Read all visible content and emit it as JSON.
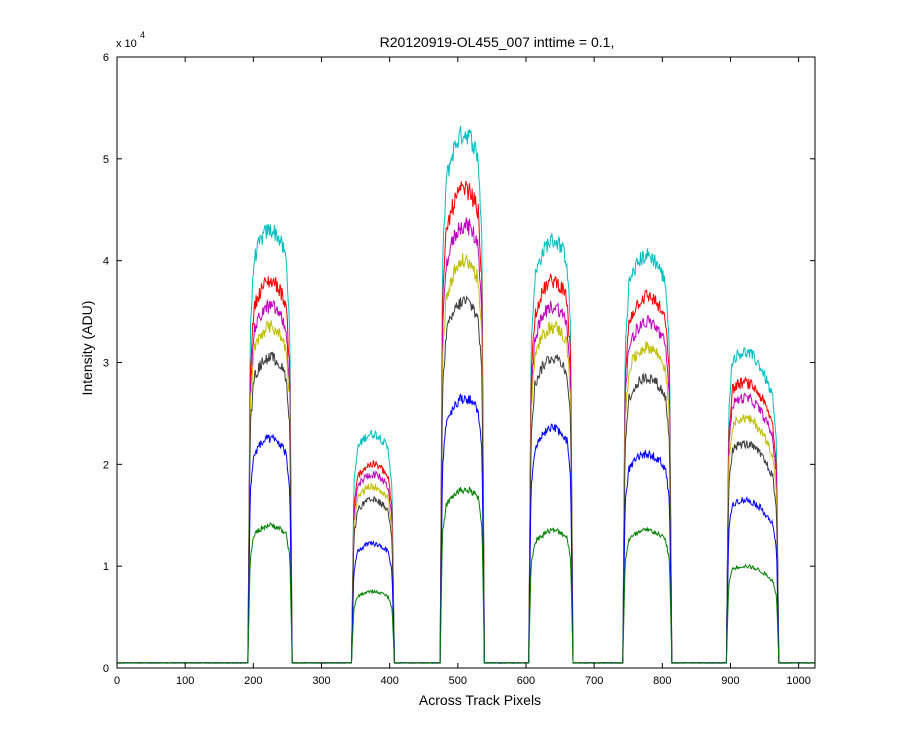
{
  "chart_data": {
    "type": "line",
    "title": "R20120919-OL455_007 inttime = 0.1,",
    "xlabel": "Across Track Pixels",
    "ylabel": "Intensity (ADU)",
    "exponent_prefix": "x 10",
    "exponent_power": "4",
    "xlim": [
      0,
      1024
    ],
    "ylim": [
      0,
      60000
    ],
    "xticks": [
      0,
      100,
      200,
      300,
      400,
      500,
      600,
      700,
      800,
      900,
      1000
    ],
    "yticks": [
      0,
      10000,
      20000,
      30000,
      40000,
      50000,
      60000
    ],
    "ytick_labels": [
      "0",
      "1",
      "2",
      "3",
      "4",
      "5",
      "6"
    ],
    "grid": false,
    "legend": "none",
    "baseline": 500,
    "noise_fraction": 0.02,
    "bumps": [
      {
        "x_start": 196,
        "x_end": 253,
        "peak_x": 225
      },
      {
        "x_start": 348,
        "x_end": 403,
        "peak_x": 375
      },
      {
        "x_start": 478,
        "x_end": 535,
        "peak_x": 510
      },
      {
        "x_start": 608,
        "x_end": 665,
        "peak_x": 640
      },
      {
        "x_start": 746,
        "x_end": 810,
        "peak_x": 778
      },
      {
        "x_start": 898,
        "x_end": 967,
        "peak_x": 920
      }
    ],
    "series": [
      {
        "color": "#00bfbf",
        "peaks": [
          43000,
          23000,
          52500,
          42000,
          40500,
          31000
        ]
      },
      {
        "color": "#ff0000",
        "peaks": [
          38000,
          20000,
          47000,
          38000,
          36500,
          28000
        ]
      },
      {
        "color": "#bf00bf",
        "peaks": [
          35500,
          19000,
          43500,
          35500,
          34000,
          26500
        ]
      },
      {
        "color": "#bfbf00",
        "peaks": [
          33500,
          17800,
          40000,
          33500,
          31500,
          24500
        ]
      },
      {
        "color": "#404040",
        "peaks": [
          30500,
          16500,
          36000,
          30500,
          28500,
          22000
        ]
      },
      {
        "color": "#0000ff",
        "peaks": [
          22500,
          12200,
          26500,
          23500,
          21000,
          16500
        ]
      },
      {
        "color": "#008000",
        "peaks": [
          14000,
          7500,
          17500,
          13500,
          13500,
          10000
        ]
      }
    ]
  }
}
